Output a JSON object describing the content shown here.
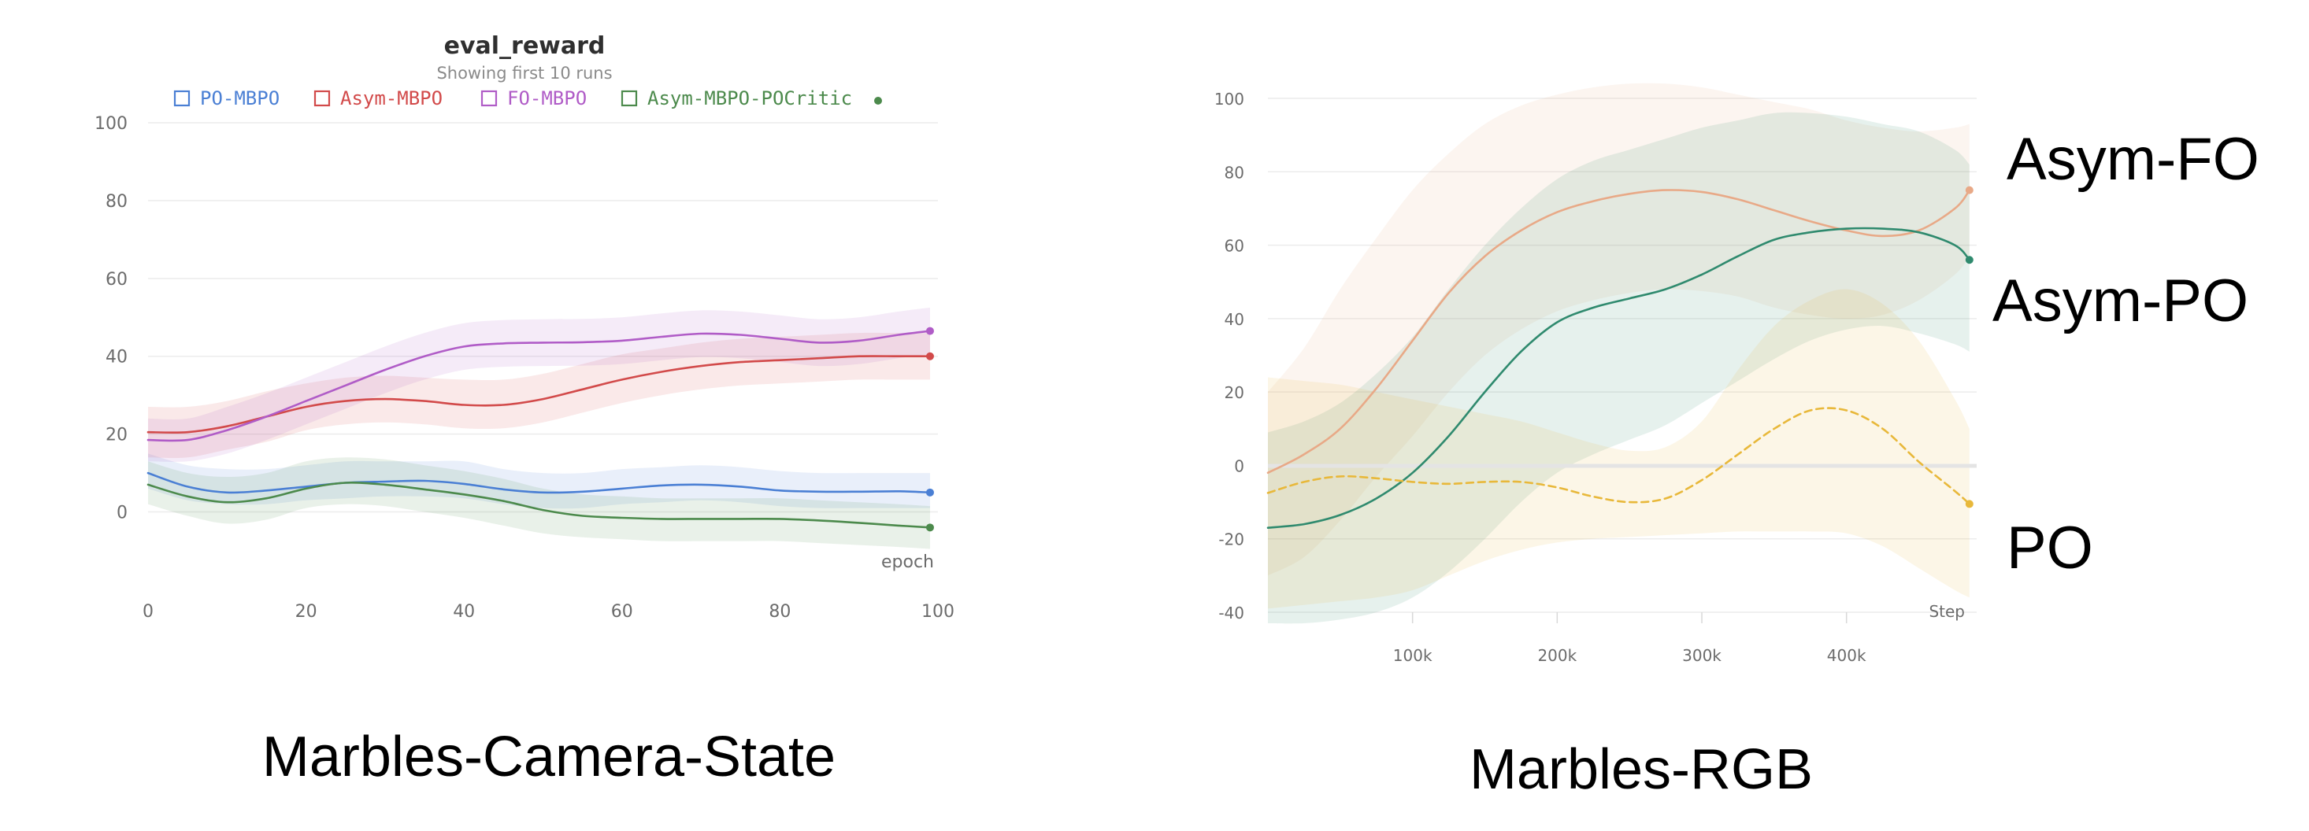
{
  "chart_data": [
    {
      "type": "line",
      "title": "eval_reward",
      "subtitle": "Showing first 10 runs",
      "caption": "Marbles-Camera-State",
      "xlabel": "epoch",
      "ylabel": "",
      "xlim": [
        0,
        100
      ],
      "ylim": [
        -10,
        100
      ],
      "xticks": [
        0,
        20,
        40,
        60,
        80,
        100
      ],
      "yticks": [
        0,
        20,
        40,
        60,
        80,
        100
      ],
      "grid": true,
      "legend_position": "top",
      "series": [
        {
          "name": "PO-MBPO",
          "color": "#4a7fd4",
          "x": [
            0,
            5,
            10,
            15,
            20,
            25,
            30,
            35,
            40,
            45,
            50,
            55,
            60,
            65,
            70,
            75,
            80,
            85,
            90,
            95,
            99
          ],
          "y": [
            10,
            6.5,
            5,
            5.5,
            6.5,
            7.5,
            7.8,
            8,
            7.2,
            5.8,
            5,
            5.2,
            6,
            6.8,
            7,
            6.5,
            5.5,
            5.2,
            5.2,
            5.3,
            5
          ],
          "band_low": [
            6,
            3,
            2,
            2,
            3,
            3.5,
            4,
            4,
            3.5,
            2,
            1,
            1,
            2,
            2.5,
            3,
            2.5,
            1.5,
            1,
            1,
            1,
            1
          ],
          "band_high": [
            15,
            12,
            11,
            11,
            12,
            13,
            13,
            13,
            13,
            11,
            10,
            10,
            11,
            11.5,
            12,
            11.5,
            10.5,
            10,
            10,
            10,
            10
          ]
        },
        {
          "name": "Asym-MBPO",
          "color": "#d24a4a",
          "x": [
            0,
            5,
            10,
            15,
            20,
            25,
            30,
            35,
            40,
            45,
            50,
            55,
            60,
            65,
            70,
            75,
            80,
            85,
            90,
            95,
            99
          ],
          "y": [
            20.5,
            20.5,
            22,
            24.5,
            27,
            28.5,
            29,
            28.5,
            27.5,
            27.5,
            29,
            31.5,
            34,
            36,
            37.5,
            38.5,
            39,
            39.5,
            40,
            40,
            40
          ],
          "band_low": [
            14,
            14,
            16,
            18,
            21,
            22.5,
            23,
            22.5,
            21.5,
            21.5,
            23,
            25.5,
            28,
            30,
            31.5,
            32.5,
            33,
            33.5,
            34,
            34,
            34
          ],
          "band_high": [
            27,
            27,
            28.5,
            31,
            33,
            34.5,
            35,
            34.5,
            34,
            34,
            35.5,
            38,
            40.5,
            42,
            43.5,
            44.5,
            45,
            45.5,
            46,
            46,
            46
          ]
        },
        {
          "name": "FO-MBPO",
          "color": "#b05cc7",
          "x": [
            0,
            5,
            10,
            15,
            20,
            25,
            30,
            35,
            40,
            45,
            50,
            55,
            60,
            65,
            70,
            75,
            80,
            85,
            90,
            95,
            99
          ],
          "y": [
            18.5,
            18.5,
            21,
            24.5,
            28.5,
            32.5,
            36.5,
            40,
            42.5,
            43.3,
            43.5,
            43.6,
            44,
            45,
            45.8,
            45.5,
            44.5,
            43.5,
            44,
            45.5,
            46.5
          ],
          "band_low": [
            13,
            13,
            15,
            18.5,
            22.5,
            26.5,
            30.5,
            34,
            36.5,
            37.3,
            37.5,
            37.6,
            38,
            39,
            39.8,
            39.5,
            38.5,
            37.5,
            38,
            39.5,
            40.5
          ],
          "band_high": [
            24,
            24,
            27,
            30.5,
            34.5,
            38.5,
            42.5,
            46,
            48.5,
            49.3,
            49.5,
            49.6,
            50,
            51,
            51.8,
            51.5,
            50.5,
            49.5,
            50,
            51.5,
            52.5
          ]
        },
        {
          "name": "Asym-MBPO-POCritic",
          "color": "#4c8a4c",
          "x": [
            0,
            5,
            10,
            15,
            20,
            25,
            30,
            35,
            40,
            45,
            50,
            55,
            60,
            65,
            70,
            75,
            80,
            85,
            90,
            95,
            99
          ],
          "y": [
            7,
            4,
            2.5,
            3.5,
            6,
            7.5,
            7,
            5.8,
            4.5,
            2.8,
            0.5,
            -1,
            -1.5,
            -1.8,
            -1.8,
            -1.8,
            -1.8,
            -2.2,
            -2.8,
            -3.5,
            -4
          ],
          "band_low": [
            2,
            -1,
            -3,
            -2,
            1,
            2,
            1.5,
            0,
            -1.5,
            -3.5,
            -5.5,
            -6.5,
            -7,
            -7.5,
            -7.5,
            -7.5,
            -7.5,
            -8,
            -8.5,
            -9,
            -9.5
          ],
          "band_high": [
            13,
            10,
            9,
            10,
            13,
            14,
            13.5,
            12,
            10.5,
            8.5,
            6,
            4.5,
            4,
            3.5,
            3.5,
            3.5,
            3.5,
            3,
            2.5,
            2,
            1.5
          ]
        }
      ]
    },
    {
      "type": "line",
      "title": "",
      "caption": "Marbles-RGB",
      "xlabel": "Step",
      "ylabel": "",
      "xlim": [
        0,
        490000
      ],
      "ylim": [
        -40,
        100
      ],
      "xticks": [
        100000,
        200000,
        300000,
        400000
      ],
      "xtick_labels": [
        "100k",
        "200k",
        "300k",
        "400k"
      ],
      "yticks": [
        -40,
        -20,
        0,
        20,
        40,
        60,
        80,
        100
      ],
      "grid": true,
      "series": [
        {
          "name": "Asym-FO",
          "color": "#e8a987",
          "x": [
            0,
            25000,
            50000,
            75000,
            100000,
            125000,
            150000,
            175000,
            200000,
            225000,
            250000,
            275000,
            300000,
            325000,
            350000,
            375000,
            400000,
            425000,
            450000,
            475000,
            485000
          ],
          "y": [
            -2,
            3,
            10,
            21,
            34,
            47,
            57,
            64,
            69,
            72,
            74,
            75,
            74.5,
            72.5,
            69.5,
            66.5,
            64,
            62.5,
            64,
            70,
            75
          ],
          "band_low": [
            -30,
            -25,
            -15,
            -3,
            8,
            20,
            30,
            37,
            42,
            45,
            47,
            48,
            47.5,
            46,
            43,
            41,
            40,
            41,
            45,
            52,
            57
          ],
          "band_high": [
            20,
            32,
            48,
            62,
            75,
            85,
            93,
            98,
            101,
            103,
            104,
            104,
            103,
            101,
            99,
            97,
            94,
            92,
            91,
            92,
            93
          ]
        },
        {
          "name": "Asym-PO",
          "color": "#2f8a6e",
          "x": [
            0,
            25000,
            50000,
            75000,
            100000,
            125000,
            150000,
            175000,
            200000,
            225000,
            250000,
            275000,
            300000,
            325000,
            350000,
            375000,
            400000,
            425000,
            450000,
            475000,
            485000
          ],
          "y": [
            -17,
            -16,
            -13.5,
            -9,
            -2,
            8,
            20,
            31,
            39,
            43,
            45.5,
            48,
            52,
            57,
            61.5,
            63.5,
            64.5,
            64.5,
            63.5,
            60,
            56
          ],
          "band_low": [
            -43,
            -43,
            -42,
            -40,
            -36,
            -29,
            -20,
            -10,
            -2,
            3,
            7,
            11,
            17,
            23,
            29,
            34,
            37,
            38,
            36,
            33,
            31
          ],
          "band_high": [
            9,
            12,
            17,
            25,
            35,
            48,
            60,
            70,
            78,
            83,
            86,
            89,
            92,
            94,
            96,
            96,
            95,
            93,
            91,
            86,
            82
          ]
        },
        {
          "name": "PO",
          "color": "#e8b83a",
          "dashed": true,
          "x": [
            0,
            25000,
            50000,
            75000,
            100000,
            125000,
            150000,
            175000,
            200000,
            225000,
            250000,
            275000,
            300000,
            325000,
            350000,
            375000,
            400000,
            425000,
            450000,
            475000,
            485000
          ],
          "y": [
            -7.5,
            -4.5,
            -3,
            -3.5,
            -4.5,
            -5,
            -4.5,
            -4.5,
            -6,
            -8.5,
            -10,
            -9,
            -4,
            3,
            10,
            15,
            15,
            10,
            1,
            -7,
            -10.5
          ],
          "band_low": [
            -39,
            -38,
            -37,
            -36,
            -34,
            -30,
            -26,
            -23,
            -21,
            -20,
            -19.5,
            -19,
            -18.5,
            -18,
            -18,
            -18,
            -18.5,
            -22,
            -28,
            -34,
            -36
          ],
          "band_high": [
            24,
            23,
            22,
            20,
            18,
            16,
            14,
            12,
            9,
            6,
            4,
            5,
            12,
            26,
            38,
            45,
            48,
            44,
            34,
            18,
            10
          ]
        }
      ]
    }
  ]
}
